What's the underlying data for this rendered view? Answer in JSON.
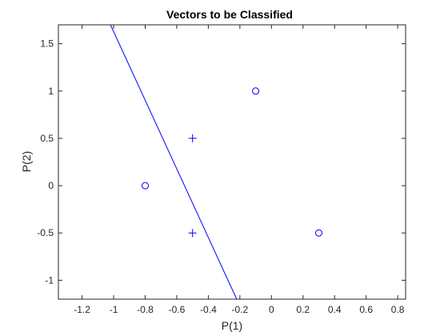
{
  "chart_data": {
    "type": "scatter",
    "title": "Vectors to be Classified",
    "xlabel": "P(1)",
    "ylabel": "P(2)",
    "xlim": [
      -1.35,
      0.85
    ],
    "ylim": [
      -1.2,
      1.7
    ],
    "xticks": [
      -1.2,
      -1,
      -0.8,
      -0.6,
      -0.4,
      -0.2,
      0,
      0.2,
      0.4,
      0.6,
      0.8
    ],
    "xtick_labels": [
      "-1.2",
      "-1",
      "-0.8",
      "-0.6",
      "-0.4",
      "-0.2",
      "0",
      "0.2",
      "0.4",
      "0.6",
      "0.8"
    ],
    "yticks": [
      -1,
      -0.5,
      0,
      0.5,
      1,
      1.5
    ],
    "ytick_labels": [
      "-1",
      "-0.5",
      "0",
      "0.5",
      "1",
      "1.5"
    ],
    "grid": false,
    "color": "#0000ff",
    "axis_color": "#262626",
    "series": [
      {
        "marker": "circle",
        "points": [
          [
            -0.8,
            0
          ],
          [
            -0.1,
            1
          ],
          [
            0.3,
            -0.5
          ]
        ]
      },
      {
        "marker": "plus",
        "points": [
          [
            -0.5,
            0.5
          ],
          [
            -0.5,
            -0.5
          ]
        ]
      }
    ],
    "boundary_line": {
      "points": [
        [
          -1.02,
          1.7
        ],
        [
          -0.22,
          -1.2
        ]
      ]
    }
  }
}
